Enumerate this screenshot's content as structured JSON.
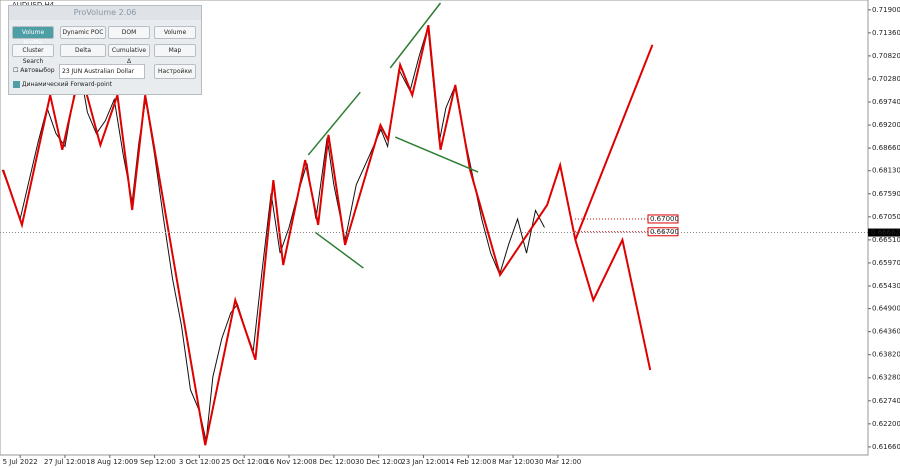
{
  "chart_data": {
    "type": "line",
    "title": "AUDUSD,H4",
    "xlim": [
      -0.45,
      18.92
    ],
    "xticks": [
      {
        "value": 0,
        "label": "5 Jul 2022"
      },
      {
        "value": 1,
        "label": "27 Jul 12:00"
      },
      {
        "value": 2,
        "label": "18 Aug 12:00"
      },
      {
        "value": 3,
        "label": "9 Sep 12:00"
      },
      {
        "value": 4,
        "label": "3 Oct 12:00"
      },
      {
        "value": 5,
        "label": "25 Oct 12:00"
      },
      {
        "value": 6,
        "label": "16 Nov 12:00"
      },
      {
        "value": 7,
        "label": "8 Dec 12:00"
      },
      {
        "value": 8,
        "label": "30 Dec 12:00"
      },
      {
        "value": 9,
        "label": "23 Jan 12:00"
      },
      {
        "value": 10,
        "label": "14 Feb 12:00"
      },
      {
        "value": 11,
        "label": "8 Mar 12:00"
      },
      {
        "value": 12,
        "label": "30 Mar 12:00"
      }
    ],
    "ylim": [
      0.6147,
      0.7213
    ],
    "yticks": [
      {
        "value": 0.719,
        "label": "0.71900"
      },
      {
        "value": 0.7136,
        "label": "0.71360"
      },
      {
        "value": 0.7082,
        "label": "0.70820"
      },
      {
        "value": 0.7028,
        "label": "0.70280"
      },
      {
        "value": 0.6974,
        "label": "0.69740"
      },
      {
        "value": 0.692,
        "label": "0.69200"
      },
      {
        "value": 0.6866,
        "label": "0.68660"
      },
      {
        "value": 0.6813,
        "label": "0.68130"
      },
      {
        "value": 0.6759,
        "label": "0.67590"
      },
      {
        "value": 0.6705,
        "label": "0.67050"
      },
      {
        "value": 0.6651,
        "label": "0.66510"
      },
      {
        "value": 0.6597,
        "label": "0.65970"
      },
      {
        "value": 0.6543,
        "label": "0.65430"
      },
      {
        "value": 0.649,
        "label": "0.64900"
      },
      {
        "value": 0.6436,
        "label": "0.64360"
      },
      {
        "value": 0.6382,
        "label": "0.63820"
      },
      {
        "value": 0.6328,
        "label": "0.63280"
      },
      {
        "value": 0.6274,
        "label": "0.62740"
      },
      {
        "value": 0.622,
        "label": "0.62200"
      },
      {
        "value": 0.6166,
        "label": "0.61660"
      }
    ],
    "current_price": {
      "value": 0.66682,
      "label": "0.66682"
    },
    "price_labels": [
      {
        "value": 0.67,
        "label": "0.67000"
      },
      {
        "value": 0.667,
        "label": "0.66700"
      }
    ],
    "series": [
      {
        "color": "#111111",
        "width": 1,
        "x": [
          -0.4,
          -0.2,
          0.0,
          0.2,
          0.4,
          0.6,
          0.8,
          1.0,
          1.2,
          1.35,
          1.5,
          1.7,
          1.9,
          2.1,
          2.3,
          2.5,
          2.65,
          2.8,
          3.0,
          3.2,
          3.4,
          3.6,
          3.8,
          4.0,
          4.15,
          4.3,
          4.5,
          4.7,
          4.85,
          5.0,
          5.2,
          5.4,
          5.6,
          5.8,
          6.0,
          6.2,
          6.4,
          6.6,
          6.85,
          7.0,
          7.25,
          7.5,
          7.8,
          8.05,
          8.2,
          8.45,
          8.7,
          8.9,
          9.1,
          9.35,
          9.5,
          9.7,
          9.9,
          10.1,
          10.3,
          10.5,
          10.7,
          10.9,
          11.1,
          11.3,
          11.5,
          11.7
        ],
        "values": [
          0.6815,
          0.676,
          0.67,
          0.679,
          0.688,
          0.696,
          0.69,
          0.687,
          0.699,
          0.704,
          0.695,
          0.69,
          0.693,
          0.698,
          0.685,
          0.674,
          0.688,
          0.698,
          0.685,
          0.67,
          0.656,
          0.645,
          0.63,
          0.625,
          0.618,
          0.633,
          0.642,
          0.648,
          0.65,
          0.645,
          0.639,
          0.658,
          0.676,
          0.662,
          0.668,
          0.676,
          0.683,
          0.67,
          0.689,
          0.678,
          0.665,
          0.678,
          0.685,
          0.691,
          0.687,
          0.705,
          0.7,
          0.708,
          0.715,
          0.688,
          0.696,
          0.701,
          0.69,
          0.68,
          0.67,
          0.662,
          0.657,
          0.664,
          0.67,
          0.662,
          0.672,
          0.668
        ]
      },
      {
        "color": "#e00000",
        "width": 2,
        "x": [
          -0.38,
          0.04,
          0.67,
          0.94,
          1.34,
          1.79,
          2.17,
          2.5,
          2.79,
          4.13,
          4.8,
          5.25,
          5.65,
          5.87,
          6.36,
          6.65,
          6.88,
          7.25,
          8.04,
          8.21,
          8.48,
          8.75,
          9.11,
          9.38,
          9.71,
          10.04,
          10.71,
          11.76,
          12.05,
          12.39,
          12.79,
          13.44,
          14.06
        ],
        "values": [
          0.6815,
          0.6686,
          0.699,
          0.6862,
          0.7049,
          0.6873,
          0.699,
          0.6721,
          0.699,
          0.617,
          0.651,
          0.637,
          0.6791,
          0.6592,
          0.6838,
          0.6686,
          0.6897,
          0.6639,
          0.692,
          0.6885,
          0.7061,
          0.699,
          0.7154,
          0.6862,
          0.7014,
          0.6815,
          0.6569,
          0.6733,
          0.6826,
          0.6651,
          0.651,
          0.6651,
          0.6346
        ]
      },
      {
        "color": "#e00000",
        "width": 2,
        "x": [
          12.39,
          14.11
        ],
        "values": [
          0.6651,
          0.7108
        ]
      },
      {
        "color": "#2e7d32",
        "width": 1.5,
        "x": [
          6.43,
          7.59,
          null,
          6.58,
          7.66,
          null,
          8.26,
          9.38,
          null,
          8.37,
          10.22
        ],
        "values": [
          0.685,
          0.6997,
          null,
          0.6669,
          0.6585,
          null,
          0.7054,
          0.7206,
          null,
          0.6892,
          0.681
        ]
      }
    ]
  },
  "panel": {
    "title": "ProVolume 2.06",
    "buttons": [
      "Volume Profile",
      "Dynamic POC",
      "DOM",
      "Volume",
      "Cluster Search",
      "Delta",
      "Cumulative Δ",
      "Map"
    ],
    "auto": "Автовыбор",
    "instrument": "23 JUN Australian Dollar",
    "settings": "Настройки",
    "forward": "Динамический Forward-point"
  }
}
